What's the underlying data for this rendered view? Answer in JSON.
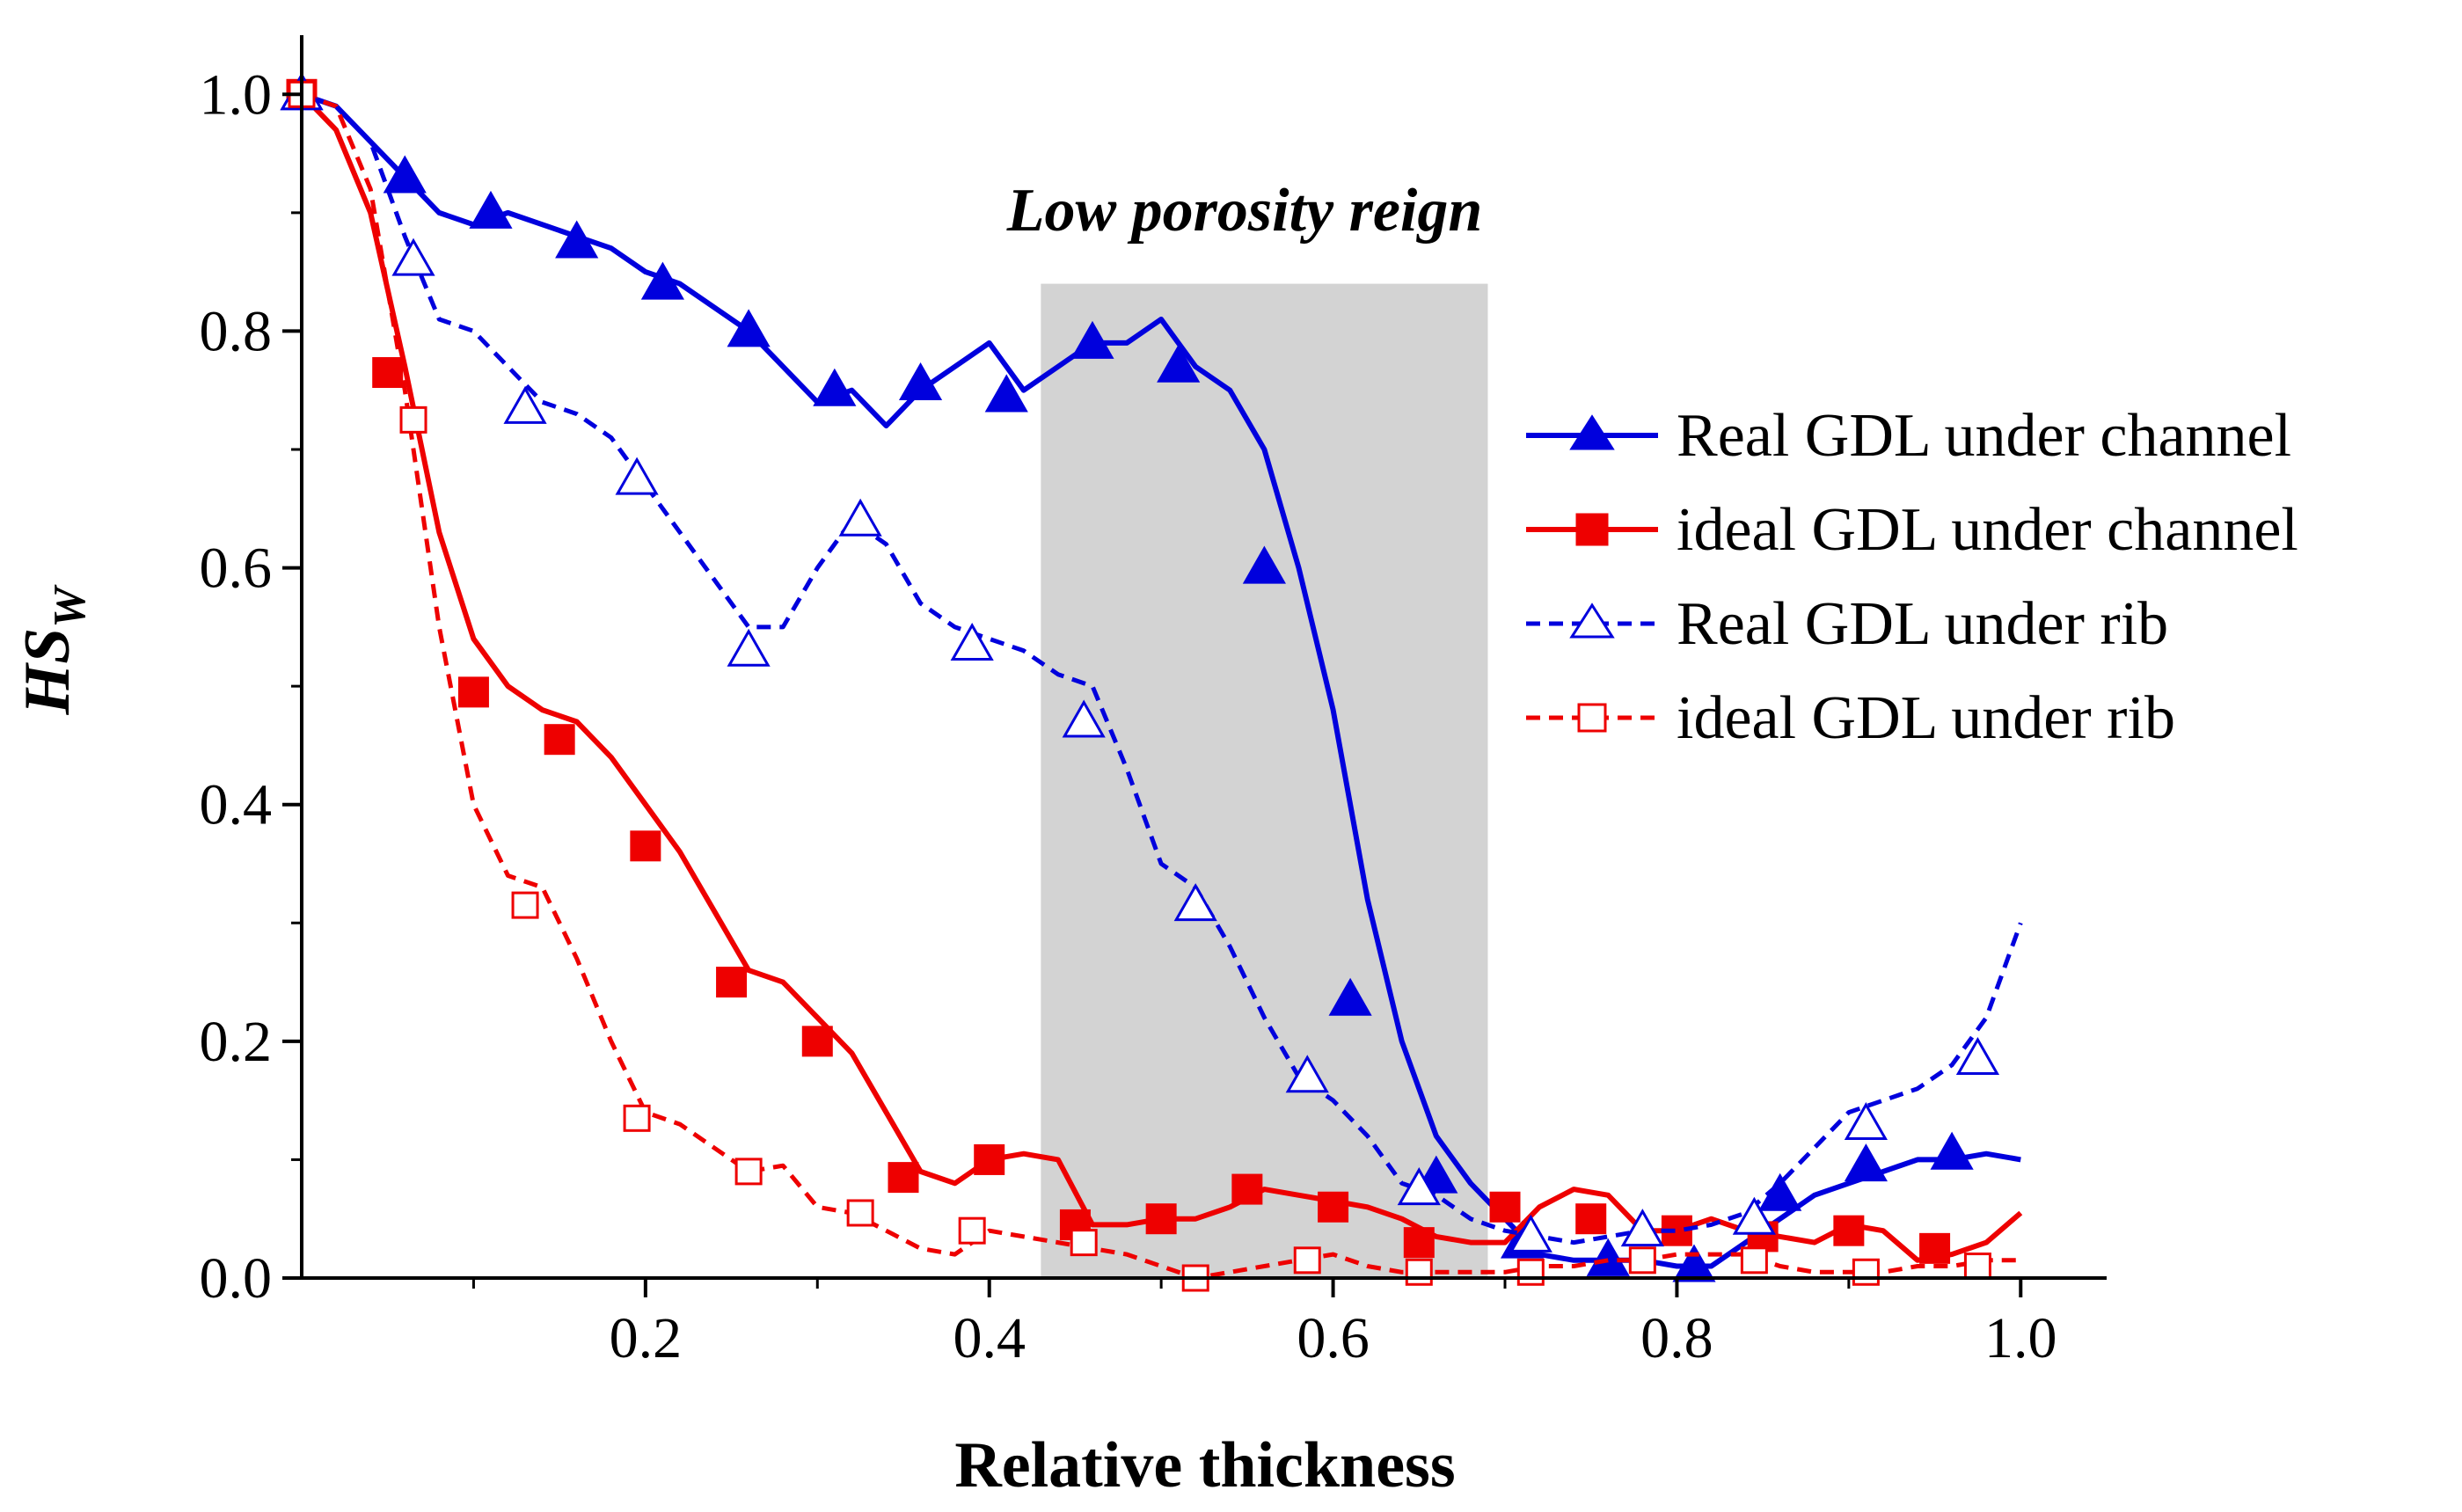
{
  "chart_data": {
    "type": "line",
    "title": "",
    "xlabel": "Relative thickness",
    "ylabel_main": "HS",
    "ylabel_sub": "W",
    "xlim": [
      0.0,
      1.05
    ],
    "ylim": [
      0.0,
      1.05
    ],
    "x_ticks": [
      0.2,
      0.4,
      0.6,
      0.8,
      1.0
    ],
    "x_tick_labels": [
      "0.2",
      "0.4",
      "0.6",
      "0.8",
      "1.0"
    ],
    "y_ticks": [
      0.0,
      0.2,
      0.4,
      0.6,
      0.8,
      1.0
    ],
    "y_tick_labels": [
      "0.0",
      "0.2",
      "0.4",
      "0.6",
      "0.8",
      "1.0"
    ],
    "grid": false,
    "legend_position": "right",
    "region": {
      "label": "Low porosity reign",
      "x_start": 0.43,
      "x_end": 0.69,
      "y_top": 0.84,
      "color": "#d3d3d3"
    },
    "series": [
      {
        "name": "Real GDL under channel",
        "color": "#0000dd",
        "dashed": false,
        "marker": "triangle",
        "filled": true,
        "x": [
          0.0,
          0.02,
          0.04,
          0.06,
          0.08,
          0.1,
          0.12,
          0.14,
          0.16,
          0.18,
          0.2,
          0.22,
          0.24,
          0.26,
          0.28,
          0.3,
          0.32,
          0.34,
          0.36,
          0.38,
          0.4,
          0.42,
          0.44,
          0.46,
          0.48,
          0.5,
          0.52,
          0.54,
          0.56,
          0.58,
          0.6,
          0.62,
          0.64,
          0.66,
          0.68,
          0.7,
          0.72,
          0.74,
          0.76,
          0.78,
          0.8,
          0.82,
          0.84,
          0.86,
          0.88,
          0.9,
          0.92,
          0.94,
          0.96,
          0.98,
          1.0
        ],
        "values": [
          1.0,
          0.99,
          0.96,
          0.93,
          0.9,
          0.89,
          0.9,
          0.89,
          0.88,
          0.87,
          0.85,
          0.84,
          0.82,
          0.8,
          0.77,
          0.74,
          0.75,
          0.72,
          0.75,
          0.77,
          0.79,
          0.75,
          0.77,
          0.79,
          0.79,
          0.81,
          0.77,
          0.75,
          0.7,
          0.6,
          0.48,
          0.32,
          0.2,
          0.12,
          0.08,
          0.05,
          0.02,
          0.015,
          0.015,
          0.015,
          0.01,
          0.01,
          0.03,
          0.05,
          0.07,
          0.08,
          0.09,
          0.1,
          0.1,
          0.105,
          0.1
        ],
        "marker_x": [
          0.0,
          0.06,
          0.11,
          0.16,
          0.21,
          0.26,
          0.31,
          0.36,
          0.41,
          0.46,
          0.51,
          0.56,
          0.61,
          0.66,
          0.71,
          0.76,
          0.81,
          0.86,
          0.91,
          0.96
        ],
        "marker_values": [
          1.0,
          0.93,
          0.9,
          0.875,
          0.84,
          0.8,
          0.75,
          0.755,
          0.745,
          0.79,
          0.77,
          0.6,
          0.235,
          0.085,
          0.03,
          0.015,
          0.01,
          0.07,
          0.095,
          0.105
        ]
      },
      {
        "name": "ideal GDL under channel",
        "color": "#ee0000",
        "dashed": false,
        "marker": "square",
        "filled": true,
        "x": [
          0.0,
          0.02,
          0.04,
          0.06,
          0.08,
          0.1,
          0.12,
          0.14,
          0.16,
          0.18,
          0.2,
          0.22,
          0.24,
          0.26,
          0.28,
          0.3,
          0.32,
          0.34,
          0.36,
          0.38,
          0.4,
          0.42,
          0.44,
          0.46,
          0.48,
          0.5,
          0.52,
          0.54,
          0.56,
          0.58,
          0.6,
          0.62,
          0.64,
          0.66,
          0.68,
          0.7,
          0.72,
          0.74,
          0.76,
          0.78,
          0.8,
          0.82,
          0.84,
          0.86,
          0.88,
          0.9,
          0.92,
          0.94,
          0.96,
          0.98,
          1.0
        ],
        "values": [
          1.0,
          0.97,
          0.9,
          0.77,
          0.63,
          0.54,
          0.5,
          0.48,
          0.47,
          0.44,
          0.4,
          0.36,
          0.31,
          0.26,
          0.25,
          0.22,
          0.19,
          0.14,
          0.09,
          0.08,
          0.1,
          0.105,
          0.1,
          0.045,
          0.045,
          0.05,
          0.05,
          0.06,
          0.075,
          0.07,
          0.065,
          0.06,
          0.05,
          0.035,
          0.03,
          0.03,
          0.06,
          0.075,
          0.07,
          0.04,
          0.04,
          0.05,
          0.04,
          0.035,
          0.03,
          0.045,
          0.04,
          0.015,
          0.02,
          0.03,
          0.055
        ],
        "marker_x": [
          0.0,
          0.05,
          0.1,
          0.15,
          0.2,
          0.25,
          0.3,
          0.35,
          0.4,
          0.45,
          0.5,
          0.55,
          0.6,
          0.65,
          0.7,
          0.75,
          0.8,
          0.85,
          0.9,
          0.95
        ],
        "marker_values": [
          1.0,
          0.765,
          0.495,
          0.455,
          0.365,
          0.25,
          0.2,
          0.085,
          0.1,
          0.045,
          0.05,
          0.075,
          0.06,
          0.03,
          0.06,
          0.05,
          0.04,
          0.035,
          0.04,
          0.025
        ]
      },
      {
        "name": "Real GDL under rib",
        "color": "#0000dd",
        "dashed": true,
        "marker": "triangle",
        "filled": false,
        "x": [
          0.0,
          0.02,
          0.04,
          0.06,
          0.08,
          0.1,
          0.12,
          0.14,
          0.16,
          0.18,
          0.2,
          0.22,
          0.24,
          0.26,
          0.28,
          0.3,
          0.32,
          0.34,
          0.36,
          0.38,
          0.4,
          0.42,
          0.44,
          0.46,
          0.48,
          0.5,
          0.52,
          0.54,
          0.56,
          0.58,
          0.6,
          0.62,
          0.64,
          0.66,
          0.68,
          0.7,
          0.72,
          0.74,
          0.76,
          0.78,
          0.8,
          0.82,
          0.84,
          0.86,
          0.88,
          0.9,
          0.92,
          0.94,
          0.96,
          0.98,
          1.0
        ],
        "values": [
          1.0,
          0.99,
          0.96,
          0.88,
          0.81,
          0.8,
          0.77,
          0.74,
          0.73,
          0.71,
          0.67,
          0.63,
          0.59,
          0.55,
          0.55,
          0.6,
          0.64,
          0.62,
          0.57,
          0.55,
          0.54,
          0.53,
          0.51,
          0.5,
          0.43,
          0.35,
          0.33,
          0.28,
          0.22,
          0.17,
          0.15,
          0.12,
          0.08,
          0.07,
          0.05,
          0.04,
          0.035,
          0.03,
          0.035,
          0.04,
          0.04,
          0.045,
          0.055,
          0.08,
          0.11,
          0.14,
          0.15,
          0.16,
          0.18,
          0.22,
          0.3
        ],
        "marker_x": [
          0.0,
          0.065,
          0.13,
          0.195,
          0.26,
          0.325,
          0.39,
          0.455,
          0.52,
          0.585,
          0.65,
          0.715,
          0.78,
          0.845,
          0.91,
          0.975
        ],
        "marker_values": [
          1.0,
          0.86,
          0.735,
          0.675,
          0.53,
          0.64,
          0.535,
          0.47,
          0.315,
          0.17,
          0.075,
          0.035,
          0.04,
          0.05,
          0.13,
          0.185
        ]
      },
      {
        "name": "ideal GDL under rib",
        "color": "#ee0000",
        "dashed": true,
        "marker": "square",
        "filled": false,
        "x": [
          0.0,
          0.02,
          0.04,
          0.06,
          0.08,
          0.1,
          0.12,
          0.14,
          0.16,
          0.18,
          0.2,
          0.22,
          0.24,
          0.26,
          0.28,
          0.3,
          0.32,
          0.34,
          0.36,
          0.38,
          0.4,
          0.42,
          0.44,
          0.46,
          0.48,
          0.5,
          0.52,
          0.54,
          0.56,
          0.58,
          0.6,
          0.62,
          0.64,
          0.66,
          0.68,
          0.7,
          0.72,
          0.74,
          0.76,
          0.78,
          0.8,
          0.82,
          0.84,
          0.86,
          0.88,
          0.9,
          0.92,
          0.94,
          0.96,
          0.98,
          1.0
        ],
        "values": [
          1.0,
          0.99,
          0.92,
          0.75,
          0.55,
          0.4,
          0.34,
          0.33,
          0.27,
          0.2,
          0.14,
          0.13,
          0.11,
          0.09,
          0.095,
          0.06,
          0.055,
          0.04,
          0.025,
          0.02,
          0.04,
          0.035,
          0.03,
          0.025,
          0.02,
          0.01,
          0.0,
          0.005,
          0.01,
          0.015,
          0.02,
          0.01,
          0.005,
          0.005,
          0.005,
          0.005,
          0.01,
          0.01,
          0.015,
          0.015,
          0.02,
          0.02,
          0.02,
          0.01,
          0.005,
          0.005,
          0.005,
          0.01,
          0.01,
          0.015,
          0.015
        ],
        "marker_x": [
          0.0,
          0.065,
          0.13,
          0.195,
          0.26,
          0.325,
          0.39,
          0.455,
          0.52,
          0.585,
          0.65,
          0.715,
          0.78,
          0.845,
          0.91,
          0.975
        ],
        "marker_values": [
          1.0,
          0.725,
          0.315,
          0.135,
          0.09,
          0.055,
          0.04,
          0.03,
          0.0,
          0.015,
          0.005,
          0.005,
          0.015,
          0.015,
          0.005,
          0.01
        ]
      }
    ]
  }
}
